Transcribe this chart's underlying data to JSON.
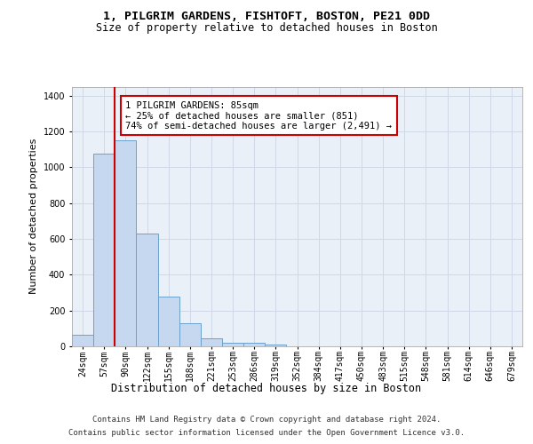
{
  "title1": "1, PILGRIM GARDENS, FISHTOFT, BOSTON, PE21 0DD",
  "title2": "Size of property relative to detached houses in Boston",
  "xlabel": "Distribution of detached houses by size in Boston",
  "ylabel": "Number of detached properties",
  "categories": [
    "24sqm",
    "57sqm",
    "90sqm",
    "122sqm",
    "155sqm",
    "188sqm",
    "221sqm",
    "253sqm",
    "286sqm",
    "319sqm",
    "352sqm",
    "384sqm",
    "417sqm",
    "450sqm",
    "483sqm",
    "515sqm",
    "548sqm",
    "581sqm",
    "614sqm",
    "646sqm",
    "679sqm"
  ],
  "values": [
    63,
    1075,
    1150,
    630,
    280,
    130,
    45,
    20,
    20,
    10,
    0,
    0,
    0,
    0,
    0,
    0,
    0,
    0,
    0,
    0,
    0
  ],
  "bar_color": "#c5d8f0",
  "bar_edge_color": "#6ca0cc",
  "grid_color": "#d0d8e8",
  "background_color": "#eaf0f8",
  "red_line_x": 1.5,
  "annotation_text": "1 PILGRIM GARDENS: 85sqm\n← 25% of detached houses are smaller (851)\n74% of semi-detached houses are larger (2,491) →",
  "annotation_box_color": "#ffffff",
  "annotation_box_edge": "#cc0000",
  "footer_line1": "Contains HM Land Registry data © Crown copyright and database right 2024.",
  "footer_line2": "Contains public sector information licensed under the Open Government Licence v3.0.",
  "ylim": [
    0,
    1450
  ],
  "yticks": [
    0,
    200,
    400,
    600,
    800,
    1000,
    1200,
    1400
  ],
  "title1_fontsize": 9.5,
  "title2_fontsize": 8.5,
  "ylabel_fontsize": 8,
  "xlabel_fontsize": 8.5,
  "tick_fontsize": 7,
  "footer_fontsize": 6.5,
  "ann_fontsize": 7.5
}
